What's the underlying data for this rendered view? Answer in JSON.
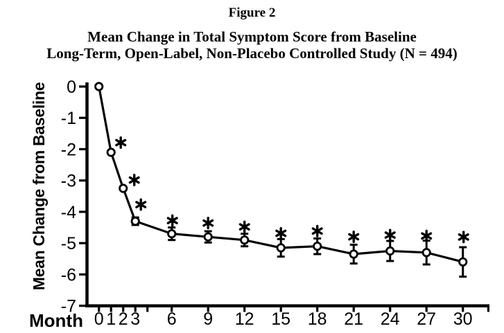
{
  "figure": {
    "label": "Figure 2",
    "title_line1": "Mean Change in Total Symptom Score from Baseline",
    "title_line2": "Long-Term, Open-Label, Non-Placebo Controlled Study (N = 494)"
  },
  "chart_data": {
    "type": "line",
    "title": "Figure 2 — Mean Change in Total Symptom Score from Baseline; Long-Term, Open-Label, Non-Placebo Controlled Study (N = 494)",
    "xlabel": "Month",
    "ylabel": "Mean Change from Baseline",
    "series_name": "Mean change in total symptom score from baseline",
    "x": [
      0,
      1,
      2,
      3,
      6,
      9,
      12,
      15,
      18,
      21,
      24,
      27,
      30
    ],
    "y": [
      0,
      -2.1,
      -3.25,
      -4.3,
      -4.7,
      -4.8,
      -4.9,
      -5.15,
      -5.1,
      -5.35,
      -5.25,
      -5.3,
      -5.6
    ],
    "error": [
      0,
      0,
      0,
      0.12,
      0.2,
      0.18,
      0.2,
      0.28,
      0.25,
      0.3,
      0.32,
      0.38,
      0.47
    ],
    "significant": [
      false,
      true,
      true,
      true,
      true,
      true,
      true,
      true,
      true,
      true,
      true,
      true,
      true
    ],
    "significance_symbol": "*",
    "x_tick_labels": [
      "0",
      "1",
      "2",
      "3",
      "6",
      "9",
      "12",
      "15",
      "18",
      "21",
      "24",
      "27",
      "30"
    ],
    "extra_x_ticks_unlabeled": [
      4
    ],
    "y_ticks": [
      0,
      -1,
      -2,
      -3,
      -4,
      -5,
      -6,
      -7
    ],
    "y_tick_labels": [
      "0",
      "-1",
      "-2",
      "-3",
      "-4",
      "-5",
      "-6",
      "-7"
    ],
    "xlim": [
      0,
      30
    ],
    "ylim": [
      -7,
      0
    ],
    "grid": false,
    "legend": "none",
    "marker": "open-circle",
    "line_color": "#000000",
    "marker_fill": "#ffffff",
    "background": "#ffffff"
  }
}
